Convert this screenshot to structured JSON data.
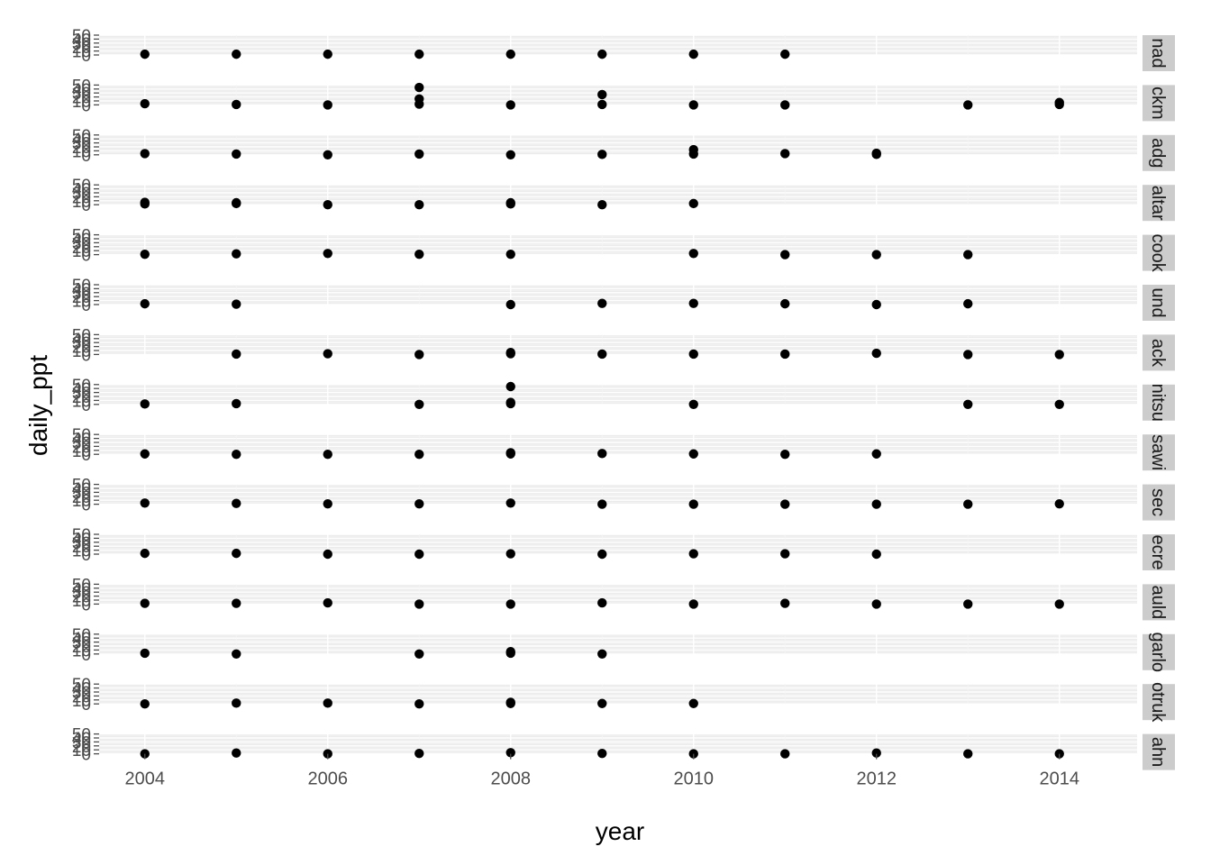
{
  "chart_data": {
    "type": "scatter",
    "faceted": "rows",
    "xlabel": "year",
    "ylabel": "daily_ppt",
    "xlim": [
      2003.5,
      2014.85
    ],
    "ylim": [
      0,
      50
    ],
    "x_ticks": [
      "2004",
      "2006",
      "2008",
      "2010",
      "2012",
      "2014"
    ],
    "y_ticks": [
      "0",
      "10",
      "20",
      "30",
      "40",
      "50"
    ],
    "grid": true,
    "panel_background": "#ebebeb",
    "strip_background": "#cccccc",
    "point_color": "#000000",
    "panels": [
      {
        "strip": "nad",
        "points": [
          [
            2004,
            2
          ],
          [
            2005,
            2
          ],
          [
            2006,
            2
          ],
          [
            2007,
            2
          ],
          [
            2008,
            2
          ],
          [
            2009,
            2
          ],
          [
            2010,
            2
          ],
          [
            2011,
            2
          ]
        ]
      },
      {
        "strip": "ckm",
        "points": [
          [
            2004,
            3
          ],
          [
            2005,
            1
          ],
          [
            2006,
            0
          ],
          [
            2007,
            44
          ],
          [
            2007,
            15
          ],
          [
            2007,
            2
          ],
          [
            2008,
            0
          ],
          [
            2009,
            26
          ],
          [
            2009,
            1
          ],
          [
            2010,
            0
          ],
          [
            2011,
            0
          ],
          [
            2013,
            0
          ],
          [
            2014,
            6
          ],
          [
            2014,
            1
          ]
        ]
      },
      {
        "strip": "adg",
        "points": [
          [
            2004,
            3
          ],
          [
            2005,
            2
          ],
          [
            2006,
            0
          ],
          [
            2007,
            2
          ],
          [
            2008,
            0
          ],
          [
            2009,
            1
          ],
          [
            2010,
            13
          ],
          [
            2010,
            2
          ],
          [
            2011,
            3
          ],
          [
            2012,
            4
          ],
          [
            2012,
            1
          ]
        ]
      },
      {
        "strip": "altar",
        "points": [
          [
            2004,
            6
          ],
          [
            2004,
            2
          ],
          [
            2005,
            5
          ],
          [
            2005,
            3
          ],
          [
            2006,
            0
          ],
          [
            2007,
            0
          ],
          [
            2008,
            5
          ],
          [
            2008,
            2
          ],
          [
            2009,
            0
          ],
          [
            2010,
            3
          ]
        ]
      },
      {
        "strip": "cook",
        "points": [
          [
            2004,
            1
          ],
          [
            2005,
            2
          ],
          [
            2006,
            3
          ],
          [
            2007,
            1
          ],
          [
            2008,
            1
          ],
          [
            2010,
            3
          ],
          [
            2011,
            0
          ],
          [
            2012,
            0
          ],
          [
            2013,
            0
          ]
        ]
      },
      {
        "strip": "und",
        "points": [
          [
            2004,
            2
          ],
          [
            2005,
            1
          ],
          [
            2008,
            0
          ],
          [
            2009,
            3
          ],
          [
            2010,
            3
          ],
          [
            2011,
            2
          ],
          [
            2012,
            0
          ],
          [
            2013,
            2
          ]
        ]
      },
      {
        "strip": "ack",
        "points": [
          [
            2005,
            1
          ],
          [
            2006,
            2
          ],
          [
            2007,
            0
          ],
          [
            2008,
            5
          ],
          [
            2008,
            2
          ],
          [
            2009,
            1
          ],
          [
            2010,
            1
          ],
          [
            2011,
            1
          ],
          [
            2012,
            3
          ],
          [
            2013,
            0
          ],
          [
            2014,
            0
          ]
        ]
      },
      {
        "strip": "nitsu",
        "points": [
          [
            2004,
            1
          ],
          [
            2005,
            2
          ],
          [
            2007,
            0
          ],
          [
            2008,
            45
          ],
          [
            2008,
            5
          ],
          [
            2008,
            2
          ],
          [
            2010,
            0
          ],
          [
            2013,
            0
          ],
          [
            2014,
            0
          ]
        ]
      },
      {
        "strip": "sawi",
        "points": [
          [
            2004,
            1
          ],
          [
            2005,
            0
          ],
          [
            2006,
            0
          ],
          [
            2007,
            0
          ],
          [
            2008,
            4
          ],
          [
            2008,
            1
          ],
          [
            2009,
            2
          ],
          [
            2010,
            1
          ],
          [
            2011,
            0
          ],
          [
            2012,
            1
          ]
        ]
      },
      {
        "strip": "sec",
        "points": [
          [
            2004,
            3
          ],
          [
            2005,
            2
          ],
          [
            2006,
            1
          ],
          [
            2007,
            1
          ],
          [
            2008,
            3
          ],
          [
            2009,
            0
          ],
          [
            2010,
            0
          ],
          [
            2011,
            0
          ],
          [
            2012,
            0
          ],
          [
            2013,
            0
          ],
          [
            2014,
            1
          ]
        ]
      },
      {
        "strip": "ecre",
        "points": [
          [
            2004,
            2
          ],
          [
            2005,
            2
          ],
          [
            2006,
            0
          ],
          [
            2007,
            0
          ],
          [
            2008,
            1
          ],
          [
            2009,
            0
          ],
          [
            2010,
            1
          ],
          [
            2011,
            1
          ],
          [
            2012,
            0
          ]
        ]
      },
      {
        "strip": "auld",
        "points": [
          [
            2004,
            2
          ],
          [
            2005,
            2
          ],
          [
            2006,
            3
          ],
          [
            2007,
            0
          ],
          [
            2008,
            0
          ],
          [
            2009,
            3
          ],
          [
            2010,
            0
          ],
          [
            2011,
            2
          ],
          [
            2012,
            0
          ],
          [
            2013,
            0
          ],
          [
            2014,
            0
          ]
        ]
      },
      {
        "strip": "garlo",
        "points": [
          [
            2004,
            2
          ],
          [
            2005,
            0
          ],
          [
            2007,
            0
          ],
          [
            2008,
            6
          ],
          [
            2008,
            2
          ],
          [
            2009,
            0
          ]
        ]
      },
      {
        "strip": "otruk",
        "points": [
          [
            2004,
            0
          ],
          [
            2005,
            2
          ],
          [
            2006,
            2
          ],
          [
            2007,
            0
          ],
          [
            2008,
            4
          ],
          [
            2008,
            1
          ],
          [
            2009,
            1
          ],
          [
            2010,
            1
          ]
        ]
      },
      {
        "strip": "ahn",
        "points": [
          [
            2004,
            0
          ],
          [
            2005,
            2
          ],
          [
            2006,
            0
          ],
          [
            2007,
            1
          ],
          [
            2008,
            3
          ],
          [
            2009,
            1
          ],
          [
            2010,
            0
          ],
          [
            2011,
            0
          ],
          [
            2012,
            2
          ],
          [
            2013,
            0
          ],
          [
            2014,
            0
          ]
        ]
      }
    ]
  }
}
